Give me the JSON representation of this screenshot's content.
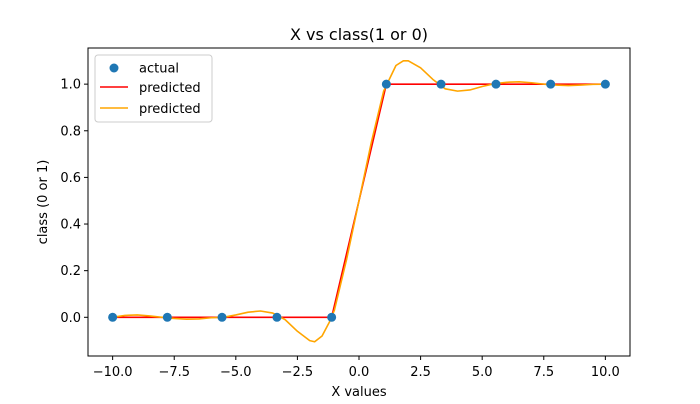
{
  "chart_data": {
    "type": "line",
    "title": "X vs class(1 or 0)",
    "xlabel": "X values",
    "ylabel": "class (0 or 1)",
    "xlim": [
      -11.0,
      11.0
    ],
    "ylim": [
      -0.166,
      1.155
    ],
    "xticks": [
      -10.0,
      -7.5,
      -5.0,
      -2.5,
      0.0,
      2.5,
      5.0,
      7.5,
      10.0
    ],
    "xtick_labels": [
      "−10.0",
      "−7.5",
      "−5.0",
      "−2.5",
      "0.0",
      "2.5",
      "5.0",
      "7.5",
      "10.0"
    ],
    "yticks": [
      0.0,
      0.2,
      0.4,
      0.6,
      0.8,
      1.0
    ],
    "ytick_labels": [
      "0.0",
      "0.2",
      "0.4",
      "0.6",
      "0.8",
      "1.0"
    ],
    "grid": false,
    "legend_position": "top-left",
    "colors": {
      "actual": "#1f77b4",
      "predicted_1": "#ff0000",
      "predicted_2": "#ffa500"
    },
    "series": [
      {
        "name": "actual",
        "kind": "scatter",
        "x": [
          -10.0,
          -7.78,
          -5.56,
          -3.33,
          -1.11,
          1.11,
          3.33,
          5.56,
          7.78,
          10.0
        ],
        "y": [
          0,
          0,
          0,
          0,
          0,
          1,
          1,
          1,
          1,
          1
        ]
      },
      {
        "name": "predicted",
        "kind": "line",
        "x": [
          -10.0,
          -7.78,
          -5.56,
          -3.33,
          -1.11,
          1.11,
          3.33,
          5.56,
          7.78,
          10.0
        ],
        "y": [
          0,
          0,
          0,
          0,
          0,
          1,
          1,
          1,
          1,
          1
        ]
      },
      {
        "name": "predicted",
        "kind": "line",
        "x": [
          -10.0,
          -9.5,
          -9.0,
          -8.5,
          -8.0,
          -7.5,
          -7.0,
          -6.5,
          -6.0,
          -5.5,
          -5.0,
          -4.5,
          -4.0,
          -3.5,
          -3.0,
          -2.5,
          -2.0,
          -1.8,
          -1.5,
          -1.2,
          -1.0,
          -0.5,
          0.0,
          0.5,
          1.0,
          1.5,
          1.8,
          2.0,
          2.5,
          3.0,
          3.5,
          4.0,
          4.5,
          5.0,
          5.5,
          6.0,
          6.5,
          7.0,
          7.5,
          8.0,
          8.5,
          9.0,
          9.5,
          10.0
        ],
        "y": [
          0.0,
          0.008,
          0.01,
          0.006,
          0.0,
          -0.005,
          -0.008,
          -0.007,
          -0.002,
          0.0,
          0.01,
          0.022,
          0.027,
          0.018,
          -0.01,
          -0.06,
          -0.1,
          -0.105,
          -0.08,
          -0.02,
          0.03,
          0.25,
          0.5,
          0.75,
          0.97,
          1.08,
          1.1,
          1.1,
          1.07,
          1.02,
          0.98,
          0.97,
          0.975,
          0.99,
          1.002,
          1.008,
          1.01,
          1.006,
          1.0,
          0.996,
          0.994,
          0.996,
          0.999,
          1.0
        ]
      }
    ]
  }
}
